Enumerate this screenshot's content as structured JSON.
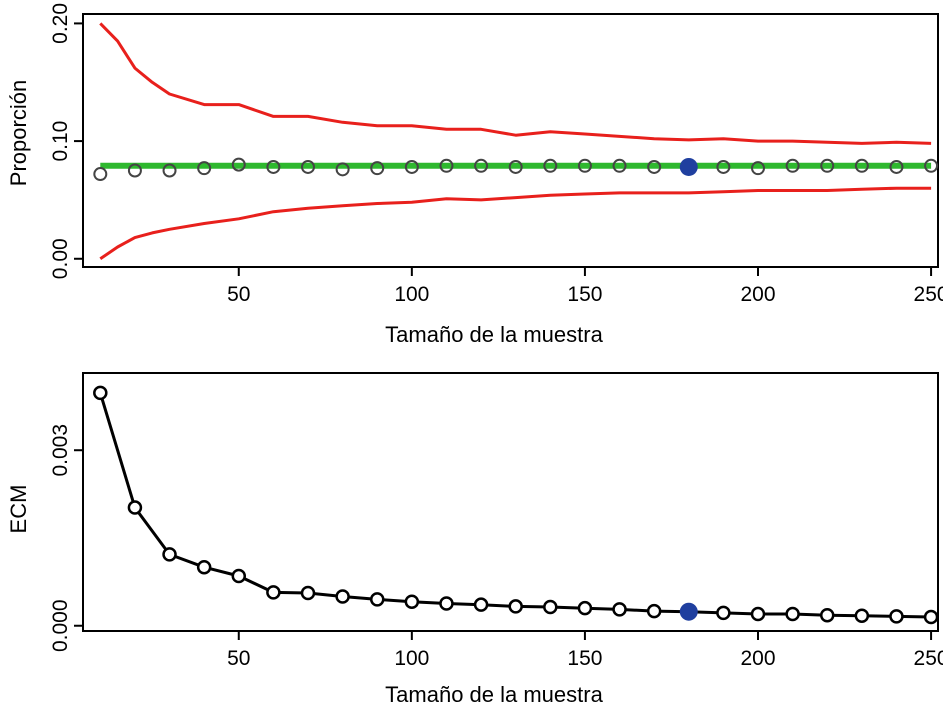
{
  "chart_data": [
    {
      "type": "line",
      "title": "",
      "xlabel": "Tamaño de la muestra",
      "ylabel": "Proporción",
      "xlim": [
        5,
        252
      ],
      "ylim": [
        -0.007,
        0.208
      ],
      "grid": false,
      "x_ticks": [
        50,
        100,
        150,
        200,
        250
      ],
      "x_tick_labels": [
        "50",
        "100",
        "150",
        "200",
        "250"
      ],
      "y_ticks": [
        0.0,
        0.1,
        0.2
      ],
      "y_tick_labels": [
        "0.00",
        "0.10",
        "0.20"
      ],
      "highlight": {
        "x": 180,
        "y": 0.078,
        "color": "#1f3f9f"
      },
      "series": [
        {
          "role": "reference-line",
          "color": "#2eb82e",
          "x": [
            10,
            250
          ],
          "y": [
            0.079,
            0.079
          ]
        },
        {
          "role": "upper-bound",
          "color": "#e8201c",
          "x": [
            10,
            15,
            20,
            25,
            30,
            40,
            50,
            60,
            70,
            80,
            90,
            100,
            110,
            120,
            130,
            140,
            150,
            160,
            170,
            180,
            190,
            200,
            210,
            220,
            230,
            240,
            250
          ],
          "y": [
            0.2,
            0.185,
            0.162,
            0.15,
            0.14,
            0.131,
            0.131,
            0.121,
            0.121,
            0.116,
            0.113,
            0.113,
            0.11,
            0.11,
            0.105,
            0.108,
            0.106,
            0.104,
            0.102,
            0.101,
            0.102,
            0.1,
            0.1,
            0.099,
            0.098,
            0.099,
            0.098
          ]
        },
        {
          "role": "lower-bound",
          "color": "#e8201c",
          "x": [
            10,
            15,
            20,
            25,
            30,
            40,
            50,
            60,
            70,
            80,
            90,
            100,
            110,
            120,
            130,
            140,
            150,
            160,
            170,
            180,
            190,
            200,
            210,
            220,
            230,
            240,
            250
          ],
          "y": [
            0.0,
            0.01,
            0.018,
            0.022,
            0.025,
            0.03,
            0.034,
            0.04,
            0.043,
            0.045,
            0.047,
            0.048,
            0.051,
            0.05,
            0.052,
            0.054,
            0.055,
            0.056,
            0.056,
            0.056,
            0.057,
            0.058,
            0.058,
            0.058,
            0.059,
            0.06,
            0.06
          ]
        },
        {
          "role": "points",
          "color": "#000000",
          "x": [
            10,
            20,
            30,
            40,
            50,
            60,
            70,
            80,
            90,
            100,
            110,
            120,
            130,
            140,
            150,
            160,
            170,
            180,
            190,
            200,
            210,
            220,
            230,
            240,
            250
          ],
          "y": [
            0.072,
            0.075,
            0.075,
            0.077,
            0.08,
            0.078,
            0.078,
            0.076,
            0.077,
            0.078,
            0.079,
            0.079,
            0.078,
            0.079,
            0.079,
            0.079,
            0.078,
            0.078,
            0.078,
            0.077,
            0.079,
            0.079,
            0.079,
            0.078,
            0.079
          ]
        }
      ]
    },
    {
      "type": "line",
      "title": "",
      "xlabel": "Tamaño de la muestra",
      "ylabel": "ECM",
      "xlim": [
        5,
        252
      ],
      "ylim": [
        -9e-05,
        0.00432
      ],
      "grid": false,
      "x_ticks": [
        50,
        100,
        150,
        200,
        250
      ],
      "x_tick_labels": [
        "50",
        "100",
        "150",
        "200",
        "250"
      ],
      "y_ticks": [
        0.0,
        0.003
      ],
      "y_tick_labels": [
        "0.000",
        "0.003"
      ],
      "highlight": {
        "x": 180,
        "y": 0.00024,
        "color": "#1f3f9f"
      },
      "series": [
        {
          "role": "points-line",
          "color": "#000000",
          "x": [
            10,
            20,
            30,
            40,
            50,
            60,
            70,
            80,
            90,
            100,
            110,
            120,
            130,
            140,
            150,
            160,
            170,
            180,
            190,
            200,
            210,
            220,
            230,
            240,
            250
          ],
          "y": [
            0.00398,
            0.00202,
            0.00122,
            0.001,
            0.00085,
            0.00057,
            0.00056,
            0.0005,
            0.00045,
            0.00041,
            0.00038,
            0.00036,
            0.00033,
            0.00032,
            0.0003,
            0.00028,
            0.00025,
            0.00024,
            0.00022,
            0.0002,
            0.0002,
            0.00018,
            0.00017,
            0.00016,
            0.00015
          ]
        }
      ]
    }
  ]
}
